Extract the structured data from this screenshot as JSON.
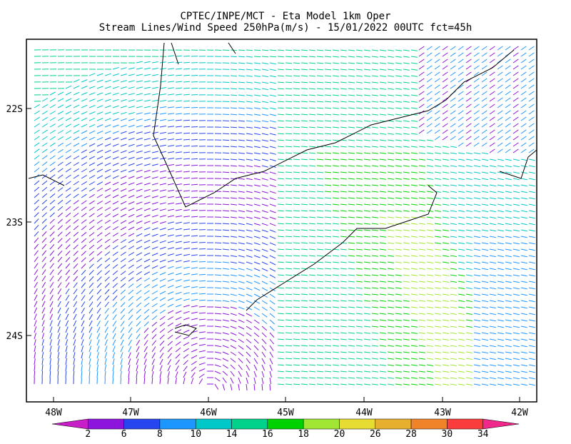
{
  "header": {
    "title_line1": "CPTEC/INPE/MCT -  Eta Model 1km Oper",
    "title_line2": "Stream Lines/Wind Speed 250hPa(m/s) - 15/01/2022 00UTC fct=45h"
  },
  "map": {
    "lat_labels": [
      "22S",
      "23S",
      "24S"
    ],
    "lon_labels": [
      "48W",
      "47W",
      "46W",
      "45W",
      "44W",
      "43W",
      "42W"
    ]
  },
  "colorbar": {
    "labels": [
      "2",
      "6",
      "8",
      "10",
      "14",
      "16",
      "18",
      "20",
      "26",
      "28",
      "30",
      "34"
    ],
    "colors": [
      "#c81ec8",
      "#8c14dc",
      "#2846f0",
      "#1e96ff",
      "#00c8c8",
      "#00d28c",
      "#00d200",
      "#a0e632",
      "#e6dc32",
      "#e6af2d",
      "#f08228",
      "#fa3c3c",
      "#f0288c"
    ]
  }
}
